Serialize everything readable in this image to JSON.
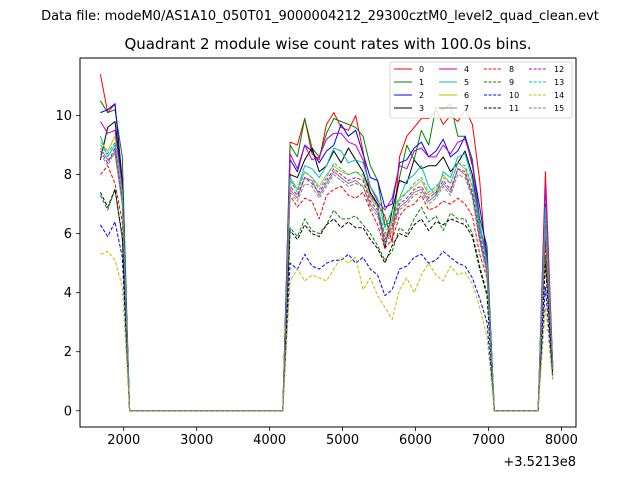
{
  "figure": {
    "suptitle": "Data file: modeM0/AS1A10_050T01_9000004212_29300cztM0_level2_quad_clean.evt",
    "title": "Quadrant 2 module wise count rates with 100.0s bins.",
    "x_offset_label": "+3.5213e8"
  },
  "chart_data": {
    "type": "line",
    "title": "Quadrant 2 module wise count rates with 100.0s bins.",
    "xlabel": "",
    "ylabel": "",
    "x_offset": 352130000,
    "xlim": [
      1400,
      8200
    ],
    "ylim": [
      -0.55,
      11.95
    ],
    "xticks": [
      2000,
      3000,
      4000,
      5000,
      6000,
      7000,
      8000
    ],
    "yticks": [
      0,
      2,
      4,
      6,
      8,
      10
    ],
    "grid": false,
    "legend": {
      "location": "upper right",
      "columns": 4
    },
    "x": [
      1680,
      1780,
      1880,
      1980,
      2080,
      2180,
      4080,
      4180,
      4280,
      4380,
      4480,
      4580,
      4680,
      4780,
      4880,
      4980,
      5080,
      5180,
      5280,
      5380,
      5480,
      5580,
      5680,
      5780,
      5880,
      5980,
      6080,
      6180,
      6280,
      6380,
      6480,
      6580,
      6680,
      6780,
      6880,
      6980,
      7080,
      7180,
      7680,
      7780,
      7880
    ],
    "series": [
      {
        "name": "0",
        "color": "#ff0000",
        "dash": "solid",
        "values": [
          11.4,
          10.1,
          10.4,
          7.7,
          0,
          0,
          0,
          0,
          9.1,
          9.0,
          9.9,
          8.7,
          8.5,
          9.7,
          10.1,
          9.6,
          9.5,
          10.0,
          8.8,
          7.3,
          7.0,
          6.6,
          5.7,
          8.6,
          9.3,
          9.6,
          9.9,
          9.9,
          10.2,
          9.7,
          10.0,
          9.8,
          10.2,
          9.7,
          7.8,
          4.6,
          0,
          0,
          0,
          8.1,
          1.6
        ]
      },
      {
        "name": "1",
        "color": "#008000",
        "dash": "solid",
        "values": [
          10.5,
          10.1,
          10.2,
          8.6,
          0,
          0,
          0,
          0,
          9.0,
          8.6,
          9.9,
          8.9,
          8.6,
          9.4,
          9.9,
          9.8,
          9.7,
          9.6,
          9.3,
          8.3,
          7.8,
          6.3,
          6.4,
          7.9,
          9.0,
          8.5,
          9.5,
          9.0,
          10.3,
          10.2,
          10.4,
          9.3,
          9.3,
          8.5,
          6.5,
          5.6,
          0,
          0,
          0,
          7.0,
          1.5
        ]
      },
      {
        "name": "2",
        "color": "#0000ff",
        "dash": "solid",
        "values": [
          10.1,
          10.2,
          10.4,
          7.8,
          0,
          0,
          0,
          0,
          8.5,
          8.1,
          9.0,
          8.8,
          8.4,
          8.8,
          9.0,
          9.7,
          9.3,
          9.5,
          8.7,
          7.9,
          7.8,
          6.9,
          7.0,
          8.4,
          8.5,
          8.9,
          9.1,
          8.6,
          8.8,
          9.2,
          8.6,
          8.8,
          9.3,
          8.3,
          6.9,
          5.3,
          0,
          0,
          0,
          7.0,
          1.5
        ]
      },
      {
        "name": "3",
        "color": "#000000",
        "dash": "solid",
        "values": [
          8.5,
          9.6,
          9.8,
          7.7,
          0,
          0,
          0,
          0,
          8.0,
          7.9,
          8.5,
          8.9,
          8.1,
          8.3,
          8.8,
          8.4,
          8.9,
          8.5,
          8.1,
          7.4,
          7.0,
          5.5,
          6.8,
          7.8,
          7.7,
          8.5,
          8.2,
          8.3,
          8.3,
          8.6,
          8.1,
          8.4,
          8.8,
          8.0,
          6.2,
          5.2,
          0,
          0,
          0,
          6.0,
          1.6
        ]
      },
      {
        "name": "4",
        "color": "#bf00bf",
        "dash": "solid",
        "values": [
          9.8,
          9.4,
          9.5,
          7.6,
          0,
          0,
          0,
          0,
          8.7,
          8.2,
          9.0,
          8.5,
          8.6,
          9.2,
          9.4,
          9.4,
          9.1,
          9.0,
          8.5,
          7.6,
          7.1,
          6.8,
          7.2,
          8.3,
          8.2,
          8.8,
          8.9,
          8.6,
          8.6,
          9.0,
          8.7,
          9.1,
          9.2,
          8.4,
          6.3,
          5.2,
          0,
          0,
          0,
          7.7,
          1.5
        ]
      },
      {
        "name": "5",
        "color": "#00bfbf",
        "dash": "solid",
        "values": [
          9.3,
          8.6,
          9.0,
          7.4,
          0,
          0,
          0,
          0,
          7.9,
          7.5,
          8.3,
          8.2,
          7.9,
          8.3,
          8.9,
          8.8,
          8.4,
          8.5,
          8.4,
          7.6,
          7.2,
          6.2,
          6.8,
          7.2,
          7.8,
          8.0,
          8.3,
          7.6,
          7.3,
          8.1,
          7.9,
          8.6,
          8.7,
          7.8,
          6.3,
          5.0,
          0,
          0,
          0,
          6.9,
          1.5
        ]
      },
      {
        "name": "6",
        "color": "#bfbf00",
        "dash": "solid",
        "values": [
          9.1,
          8.8,
          9.3,
          7.2,
          0,
          0,
          0,
          0,
          7.8,
          7.5,
          8.1,
          7.9,
          7.6,
          8.0,
          8.3,
          8.1,
          8.0,
          8.1,
          7.9,
          7.2,
          6.9,
          5.9,
          6.4,
          7.2,
          7.4,
          7.6,
          7.8,
          7.3,
          7.5,
          8.0,
          7.7,
          8.4,
          8.2,
          7.6,
          6.0,
          4.8,
          0,
          0,
          0,
          6.5,
          1.4
        ]
      },
      {
        "name": "7",
        "color": "#808080",
        "dash": "solid",
        "values": [
          8.9,
          8.5,
          8.7,
          7.0,
          0,
          0,
          0,
          0,
          7.5,
          7.2,
          7.9,
          7.8,
          7.3,
          7.7,
          8.1,
          7.9,
          7.7,
          7.8,
          7.6,
          7.0,
          6.7,
          5.7,
          6.2,
          6.9,
          7.1,
          7.4,
          7.5,
          7.1,
          7.3,
          7.7,
          7.4,
          8.2,
          8.0,
          7.3,
          5.8,
          4.7,
          0,
          0,
          0,
          6.3,
          1.4
        ]
      },
      {
        "name": "8",
        "color": "#ff0000",
        "dash": "dashed",
        "values": [
          8.0,
          8.3,
          7.7,
          6.4,
          0,
          0,
          0,
          0,
          7.3,
          6.9,
          7.2,
          7.1,
          6.5,
          7.3,
          7.5,
          7.6,
          7.3,
          7.2,
          7.4,
          6.8,
          6.3,
          5.5,
          5.8,
          6.6,
          6.9,
          7.0,
          7.3,
          6.8,
          6.9,
          7.1,
          7.0,
          7.2,
          7.0,
          6.6,
          5.3,
          4.5,
          0,
          0,
          0,
          5.5,
          1.3
        ]
      },
      {
        "name": "9",
        "color": "#008000",
        "dash": "dashed",
        "values": [
          7.3,
          6.8,
          7.5,
          5.8,
          0,
          0,
          0,
          0,
          6.2,
          5.9,
          6.5,
          6.1,
          6.0,
          6.3,
          6.8,
          6.5,
          6.5,
          6.6,
          6.3,
          6.0,
          5.6,
          5.1,
          5.4,
          6.2,
          6.0,
          6.5,
          6.9,
          6.4,
          6.6,
          6.1,
          6.7,
          6.5,
          6.5,
          6.0,
          4.9,
          4.0,
          0,
          0,
          0,
          5.2,
          1.2
        ]
      },
      {
        "name": "10",
        "color": "#0000ff",
        "dash": "dashed",
        "values": [
          6.3,
          5.9,
          6.4,
          5.2,
          0,
          0,
          0,
          0,
          5.0,
          4.8,
          5.3,
          4.9,
          4.8,
          5.0,
          5.1,
          5.1,
          5.3,
          5.0,
          5.2,
          4.8,
          4.6,
          3.9,
          4.1,
          4.8,
          4.9,
          5.2,
          5.3,
          5.0,
          5.1,
          5.4,
          5.2,
          5.0,
          4.9,
          4.5,
          3.8,
          3.0,
          0,
          0,
          0,
          4.2,
          1.1
        ]
      },
      {
        "name": "11",
        "color": "#000000",
        "dash": "dashed",
        "values": [
          7.4,
          6.9,
          7.5,
          5.9,
          0,
          0,
          0,
          0,
          6.1,
          5.8,
          6.3,
          6.0,
          5.9,
          6.3,
          6.5,
          6.2,
          6.4,
          6.2,
          6.2,
          5.8,
          5.5,
          5.0,
          5.6,
          6.0,
          5.9,
          6.3,
          6.5,
          6.1,
          6.4,
          6.3,
          6.5,
          6.4,
          6.3,
          5.9,
          4.8,
          3.9,
          0,
          0,
          0,
          5.0,
          1.2
        ]
      },
      {
        "name": "12",
        "color": "#bf00bf",
        "dash": "dashed",
        "values": [
          8.8,
          8.4,
          8.9,
          7.1,
          0,
          0,
          0,
          0,
          7.6,
          7.3,
          7.9,
          7.7,
          7.4,
          7.8,
          8.2,
          8.0,
          7.8,
          7.9,
          7.8,
          7.1,
          6.8,
          5.8,
          6.3,
          7.0,
          7.2,
          7.5,
          7.6,
          7.2,
          7.4,
          7.8,
          7.5,
          8.2,
          8.1,
          7.4,
          5.9,
          4.8,
          0,
          0,
          0,
          6.6,
          1.4
        ]
      },
      {
        "name": "13",
        "color": "#00bfbf",
        "dash": "dashed",
        "values": [
          9.0,
          8.7,
          9.1,
          7.3,
          0,
          0,
          0,
          0,
          7.8,
          7.4,
          8.1,
          7.9,
          7.5,
          7.9,
          8.4,
          8.2,
          8.0,
          8.1,
          8.0,
          7.3,
          6.9,
          6.0,
          6.5,
          7.1,
          7.4,
          7.7,
          7.9,
          7.4,
          7.6,
          7.9,
          7.7,
          8.4,
          8.3,
          7.6,
          6.1,
          4.9,
          0,
          0,
          0,
          6.8,
          1.4
        ]
      },
      {
        "name": "14",
        "color": "#bfbf00",
        "dash": "dashed",
        "values": [
          5.3,
          5.4,
          5.1,
          4.2,
          0,
          0,
          0,
          0,
          4.4,
          4.8,
          4.4,
          4.6,
          4.5,
          4.4,
          4.8,
          5.2,
          5.0,
          5.2,
          4.1,
          4.5,
          3.9,
          3.5,
          3.1,
          4.1,
          4.5,
          4.0,
          4.6,
          5.0,
          4.6,
          4.4,
          4.9,
          4.6,
          4.7,
          4.3,
          3.5,
          2.5,
          0,
          0,
          0,
          3.5,
          1.0
        ]
      },
      {
        "name": "15",
        "color": "#808080",
        "dash": "dashed",
        "values": [
          8.7,
          8.3,
          8.8,
          7.0,
          0,
          0,
          0,
          0,
          7.4,
          7.1,
          7.7,
          7.6,
          7.2,
          7.6,
          8.0,
          7.8,
          7.6,
          7.7,
          7.6,
          6.9,
          6.6,
          5.6,
          6.1,
          6.8,
          7.0,
          7.3,
          7.4,
          7.0,
          7.2,
          7.6,
          7.3,
          8.0,
          7.9,
          7.2,
          5.7,
          4.6,
          0,
          0,
          0,
          6.2,
          1.4
        ]
      }
    ]
  }
}
